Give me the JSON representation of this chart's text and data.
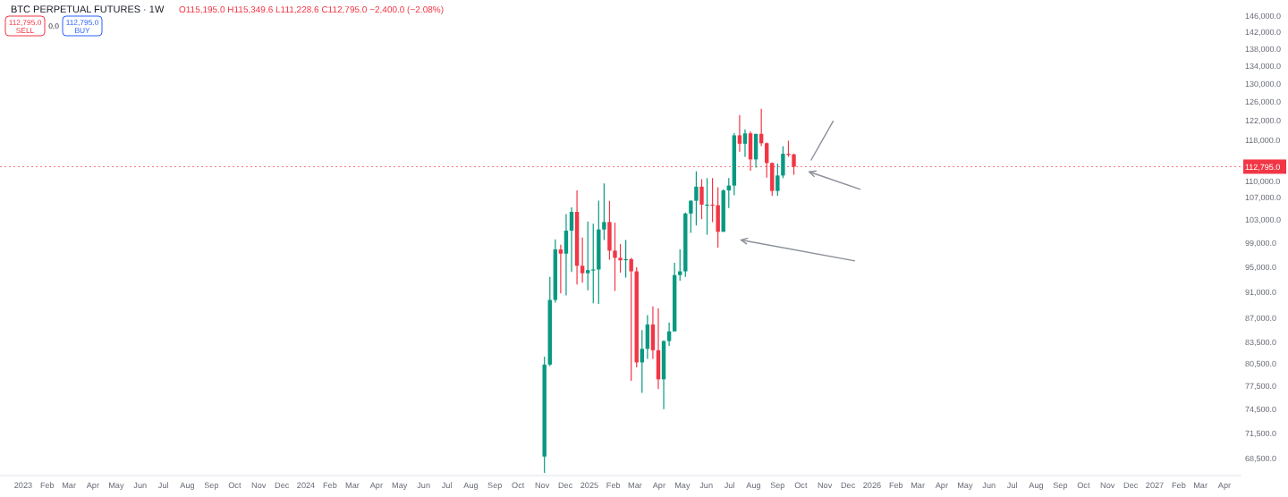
{
  "chart_data": {
    "type": "candlestick",
    "title": "BTC PERPETUAL FUTURES · 1W",
    "subtitle": "O115,195.0 H115,349.6 L111,228.6 C112,795.0 −2,400.0 (−2.08%)",
    "annotations": [
      "112,795.0",
      "SELL",
      "0.0",
      "112,795.0",
      "BUY"
    ],
    "x": [
      "2024-11-04",
      "2024-11-11",
      "2024-11-18",
      "2024-11-25",
      "2024-12-02",
      "2024-12-09",
      "2024-12-16",
      "2024-12-23",
      "2024-12-30",
      "2025-01-06",
      "2025-01-13",
      "2025-01-20",
      "2025-01-27",
      "2025-02-03",
      "2025-02-10",
      "2025-02-17",
      "2025-02-24",
      "2025-03-03",
      "2025-03-10",
      "2025-03-17",
      "2025-03-24",
      "2025-03-31",
      "2025-04-07",
      "2025-04-14",
      "2025-04-21",
      "2025-04-28",
      "2025-05-05",
      "2025-05-12",
      "2025-05-19",
      "2025-05-26",
      "2025-06-02",
      "2025-06-09",
      "2025-06-16",
      "2025-06-23",
      "2025-06-30",
      "2025-07-07",
      "2025-07-14",
      "2025-07-21",
      "2025-07-28",
      "2025-08-04",
      "2025-08-11",
      "2025-08-18",
      "2025-08-25",
      "2025-09-01",
      "2025-09-08",
      "2025-09-15",
      "2025-09-22"
    ],
    "ohlc": [
      [
        68700,
        81500,
        66800,
        80400
      ],
      [
        80400,
        93400,
        80200,
        89800
      ],
      [
        89800,
        99600,
        89400,
        97900
      ],
      [
        97900,
        98700,
        90800,
        97200
      ],
      [
        97200,
        104000,
        90500,
        101100
      ],
      [
        101100,
        105200,
        94200,
        104400
      ],
      [
        104400,
        108300,
        92200,
        95200
      ],
      [
        95200,
        99900,
        92500,
        94000
      ],
      [
        94000,
        102700,
        91300,
        94500
      ],
      [
        94500,
        102300,
        89300,
        94600
      ],
      [
        94600,
        106400,
        89200,
        101300
      ],
      [
        101300,
        109600,
        99500,
        102600
      ],
      [
        102600,
        106400,
        96200,
        97700
      ],
      [
        97700,
        102500,
        91200,
        96500
      ],
      [
        96500,
        98800,
        94100,
        96100
      ],
      [
        96100,
        99500,
        93300,
        96300
      ],
      [
        96300,
        96500,
        78200,
        94300
      ],
      [
        94300,
        95000,
        80000,
        80700
      ],
      [
        80700,
        85300,
        76600,
        82600
      ],
      [
        82600,
        87500,
        81200,
        86100
      ],
      [
        86100,
        88800,
        81200,
        82400
      ],
      [
        82400,
        88500,
        77100,
        78400
      ],
      [
        78400,
        83800,
        74500,
        83700
      ],
      [
        83700,
        86400,
        83000,
        85100
      ],
      [
        85100,
        95700,
        85100,
        93700
      ],
      [
        93700,
        97900,
        92800,
        94300
      ],
      [
        94300,
        104300,
        93400,
        104100
      ],
      [
        104100,
        106500,
        100700,
        106400
      ],
      [
        106400,
        111900,
        102000,
        109000
      ],
      [
        109000,
        110400,
        103100,
        105700
      ],
      [
        105700,
        110600,
        100400,
        105700
      ],
      [
        105700,
        110600,
        102600,
        105600
      ],
      [
        105600,
        108900,
        98200,
        100900
      ],
      [
        100900,
        108500,
        100900,
        108300
      ],
      [
        108300,
        110600,
        105100,
        109200
      ],
      [
        109200,
        119500,
        107400,
        119000
      ],
      [
        119000,
        123200,
        115700,
        117300
      ],
      [
        117300,
        120200,
        114700,
        119400
      ],
      [
        119400,
        119800,
        112000,
        114200
      ],
      [
        114200,
        119300,
        112600,
        119300
      ],
      [
        119300,
        124500,
        116800,
        117400
      ],
      [
        117400,
        117600,
        110700,
        113500
      ],
      [
        113500,
        113600,
        107300,
        108200
      ],
      [
        108200,
        113400,
        107300,
        111100
      ],
      [
        111100,
        116800,
        110600,
        115300
      ],
      [
        115300,
        117900,
        114700,
        115195
      ],
      [
        115195,
        115350,
        111229,
        112795
      ]
    ],
    "colors": [
      "#089981",
      "#089981",
      "#089981",
      "#f23645",
      "#089981",
      "#089981",
      "#f23645",
      "#f23645",
      "#089981",
      "#089981",
      "#089981",
      "#089981",
      "#f23645",
      "#f23645",
      "#f23645",
      "#089981",
      "#f23645",
      "#f23645",
      "#089981",
      "#089981",
      "#f23645",
      "#f23645",
      "#089981",
      "#089981",
      "#089981",
      "#089981",
      "#089981",
      "#089981",
      "#089981",
      "#f23645",
      "#089981",
      "#f23645",
      "#f23645",
      "#089981",
      "#089981",
      "#089981",
      "#f23645",
      "#089981",
      "#f23645",
      "#089981",
      "#f23645",
      "#f23645",
      "#f23645",
      "#089981",
      "#089981",
      "#f23645",
      "#f23645"
    ],
    "log": true,
    "xlim": [
      "2022-12-02",
      "2027-04-23"
    ],
    "xticks": [
      {
        "value": "2023-01-01",
        "label": "2023"
      },
      {
        "value": "2023-02-01",
        "label": "Feb"
      },
      {
        "value": "2023-03-01",
        "label": "Mar"
      },
      {
        "value": "2023-04-01",
        "label": "Apr"
      },
      {
        "value": "2023-05-01",
        "label": "May"
      },
      {
        "value": "2023-06-01",
        "label": "Jun"
      },
      {
        "value": "2023-07-01",
        "label": "Jul"
      },
      {
        "value": "2023-08-01",
        "label": "Aug"
      },
      {
        "value": "2023-09-01",
        "label": "Sep"
      },
      {
        "value": "2023-10-01",
        "label": "Oct"
      },
      {
        "value": "2023-11-01",
        "label": "Nov"
      },
      {
        "value": "2023-12-01",
        "label": "Dec"
      },
      {
        "value": "2024-01-01",
        "label": "2024"
      },
      {
        "value": "2024-02-01",
        "label": "Feb"
      },
      {
        "value": "2024-03-01",
        "label": "Mar"
      },
      {
        "value": "2024-04-01",
        "label": "Apr"
      },
      {
        "value": "2024-05-01",
        "label": "May"
      },
      {
        "value": "2024-06-01",
        "label": "Jun"
      },
      {
        "value": "2024-07-01",
        "label": "Jul"
      },
      {
        "value": "2024-08-01",
        "label": "Aug"
      },
      {
        "value": "2024-09-01",
        "label": "Sep"
      },
      {
        "value": "2024-10-01",
        "label": "Oct"
      },
      {
        "value": "2024-11-01",
        "label": "Nov"
      },
      {
        "value": "2024-12-01",
        "label": "Dec"
      },
      {
        "value": "2025-01-01",
        "label": "2025"
      },
      {
        "value": "2025-02-01",
        "label": "Feb"
      },
      {
        "value": "2025-03-01",
        "label": "Mar"
      },
      {
        "value": "2025-04-01",
        "label": "Apr"
      },
      {
        "value": "2025-05-01",
        "label": "May"
      },
      {
        "value": "2025-06-01",
        "label": "Jun"
      },
      {
        "value": "2025-07-01",
        "label": "Jul"
      },
      {
        "value": "2025-08-01",
        "label": "Aug"
      },
      {
        "value": "2025-09-01",
        "label": "Sep"
      },
      {
        "value": "2025-10-01",
        "label": "Oct"
      },
      {
        "value": "2025-11-01",
        "label": "Nov"
      },
      {
        "value": "2025-12-01",
        "label": "Dec"
      },
      {
        "value": "2026-01-01",
        "label": "2026"
      },
      {
        "value": "2026-02-01",
        "label": "Feb"
      },
      {
        "value": "2026-03-01",
        "label": "Mar"
      },
      {
        "value": "2026-04-01",
        "label": "Apr"
      },
      {
        "value": "2026-05-01",
        "label": "May"
      },
      {
        "value": "2026-06-01",
        "label": "Jun"
      },
      {
        "value": "2026-07-01",
        "label": "Jul"
      },
      {
        "value": "2026-08-01",
        "label": "Aug"
      },
      {
        "value": "2026-09-01",
        "label": "Sep"
      },
      {
        "value": "2026-10-01",
        "label": "Oct"
      },
      {
        "value": "2026-11-01",
        "label": "Nov"
      },
      {
        "value": "2026-12-01",
        "label": "Dec"
      },
      {
        "value": "2027-01-01",
        "label": "2027"
      },
      {
        "value": "2027-02-01",
        "label": "Feb"
      },
      {
        "value": "2027-03-01",
        "label": "Mar"
      },
      {
        "value": "2027-04-01",
        "label": "Apr"
      }
    ],
    "ylim": [
      66500,
      150000
    ],
    "yticks": [
      {
        "value": 146000,
        "label": "146,000.0"
      },
      {
        "value": 142000,
        "label": "142,000.0"
      },
      {
        "value": 138000,
        "label": "138,000.0"
      },
      {
        "value": 134000,
        "label": "134,000.0"
      },
      {
        "value": 130000,
        "label": "130,000.0"
      },
      {
        "value": 126000,
        "label": "126,000.0"
      },
      {
        "value": 122000,
        "label": "122,000.0"
      },
      {
        "value": 118000,
        "label": "118,000.0"
      },
      {
        "value": 110000,
        "label": "110,000.0"
      },
      {
        "value": 107000,
        "label": "107,000.0"
      },
      {
        "value": 103000,
        "label": "103,000.0"
      },
      {
        "value": 99000,
        "label": "99,000.0"
      },
      {
        "value": 95000,
        "label": "95,000.0"
      },
      {
        "value": 91000,
        "label": "91,000.0"
      },
      {
        "value": 87000,
        "label": "87,000.0"
      },
      {
        "value": 83500,
        "label": "83,500.0"
      },
      {
        "value": 80500,
        "label": "80,500.0"
      },
      {
        "value": 77500,
        "label": "77,500.0"
      },
      {
        "value": 74500,
        "label": "74,500.0"
      },
      {
        "value": 71500,
        "label": "71,500.0"
      },
      {
        "value": 68500,
        "label": "68,500.0"
      }
    ],
    "ref_lines": [
      {
        "axis": "y",
        "value": 112795,
        "label": "112,795.0",
        "color": "#f23645",
        "line_style": "dotted"
      }
    ]
  }
}
